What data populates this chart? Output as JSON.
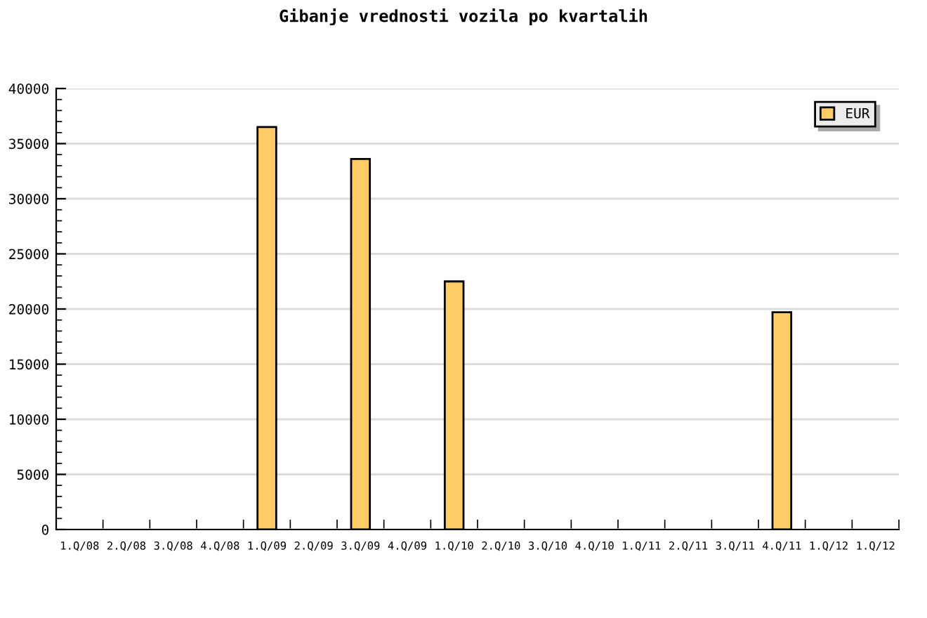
{
  "chart_data": {
    "type": "bar",
    "title": "Gibanje vrednosti vozila po kvartalih",
    "categories": [
      "1.Q/08",
      "2.Q/08",
      "3.Q/08",
      "4.Q/08",
      "1.Q/09",
      "2.Q/09",
      "3.Q/09",
      "4.Q/09",
      "1.Q/10",
      "2.Q/10",
      "3.Q/10",
      "4.Q/10",
      "1.Q/11",
      "2.Q/11",
      "3.Q/11",
      "4.Q/11",
      "1.Q/12",
      "1.Q/12"
    ],
    "series": [
      {
        "name": "EUR",
        "color": "#ffcc66",
        "values": [
          null,
          null,
          null,
          null,
          36500,
          null,
          33600,
          null,
          22500,
          null,
          null,
          null,
          null,
          null,
          null,
          19700,
          null,
          null
        ]
      }
    ],
    "ylim": [
      0,
      40000
    ],
    "yticks": [
      0,
      5000,
      10000,
      15000,
      20000,
      25000,
      30000,
      35000,
      40000
    ],
    "grid": "y",
    "legend": "top right"
  }
}
